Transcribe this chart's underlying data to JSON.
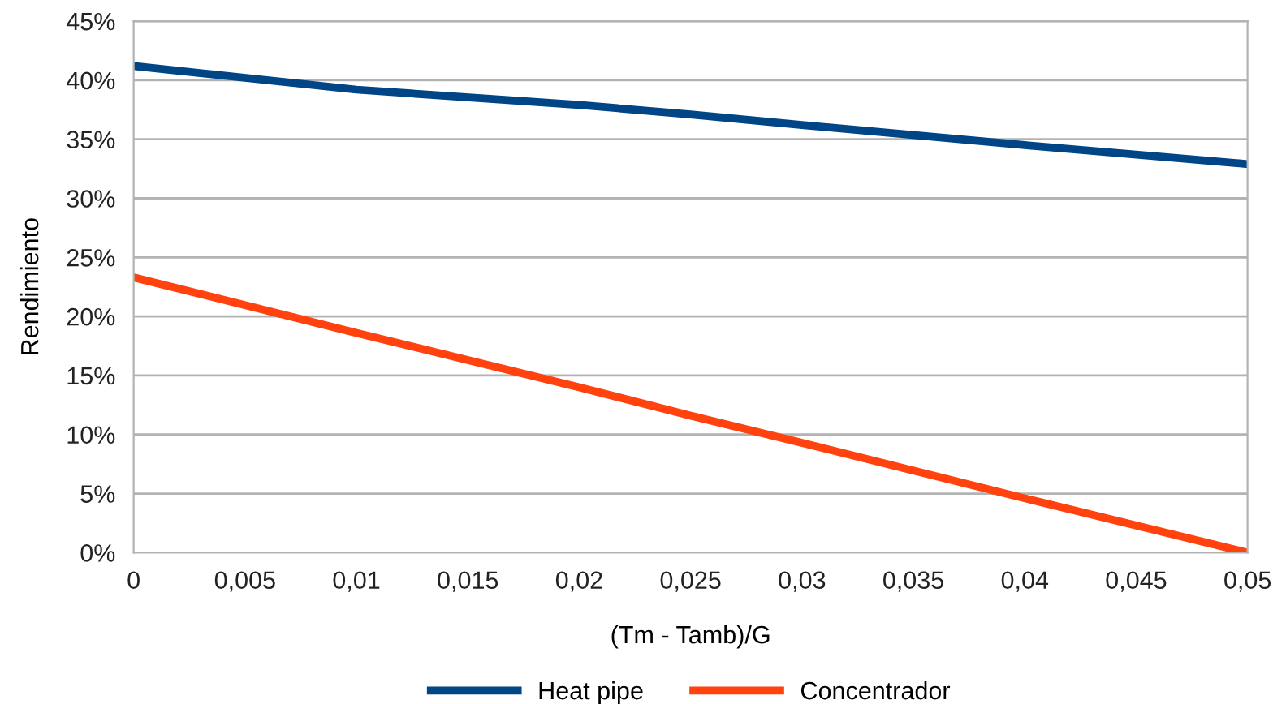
{
  "chart_data": {
    "type": "line",
    "xlabel": "(Tm - Tamb)/G",
    "ylabel": "Rendimiento",
    "xlim": [
      0,
      0.05
    ],
    "xticks": [
      0,
      {
        "value": 0.005,
        "label": "0,005"
      },
      {
        "value": 0.01,
        "label": "0,01"
      },
      {
        "value": 0.015,
        "label": "0,015"
      },
      {
        "value": 0.02,
        "label": "0,02"
      },
      {
        "value": 0.025,
        "label": "0,025"
      },
      {
        "value": 0.03,
        "label": "0,03"
      },
      {
        "value": 0.035,
        "label": "0,035"
      },
      {
        "value": 0.04,
        "label": "0,04"
      },
      {
        "value": 0.045,
        "label": "0,045"
      },
      {
        "value": 0.05,
        "label": "0,05"
      }
    ],
    "ylim": [
      0,
      45
    ],
    "yticks": [
      {
        "value": 0,
        "label": "0%"
      },
      {
        "value": 5,
        "label": "5%"
      },
      {
        "value": 10,
        "label": "10%"
      },
      {
        "value": 15,
        "label": "15%"
      },
      {
        "value": 20,
        "label": "20%"
      },
      {
        "value": 25,
        "label": "25%"
      },
      {
        "value": 30,
        "label": "30%"
      },
      {
        "value": 35,
        "label": "35%"
      },
      {
        "value": 40,
        "label": "40%"
      },
      {
        "value": 45,
        "label": "45%"
      }
    ],
    "grid": "y",
    "legend": "bottom",
    "marker": "none",
    "line_style": "solid",
    "x": [
      0,
      0.01,
      0.02,
      0.025,
      0.03,
      0.04,
      0.05
    ],
    "series": [
      {
        "name": "Heat pipe",
        "color": "#004586",
        "values": [
          41.2,
          39.2,
          37.9,
          37.1,
          36.2,
          34.5,
          32.9
        ]
      },
      {
        "name": "Concentrador",
        "color": "#ff420e",
        "values": [
          23.3,
          18.6,
          14.0,
          11.6,
          9.3,
          4.6,
          0
        ]
      }
    ]
  }
}
